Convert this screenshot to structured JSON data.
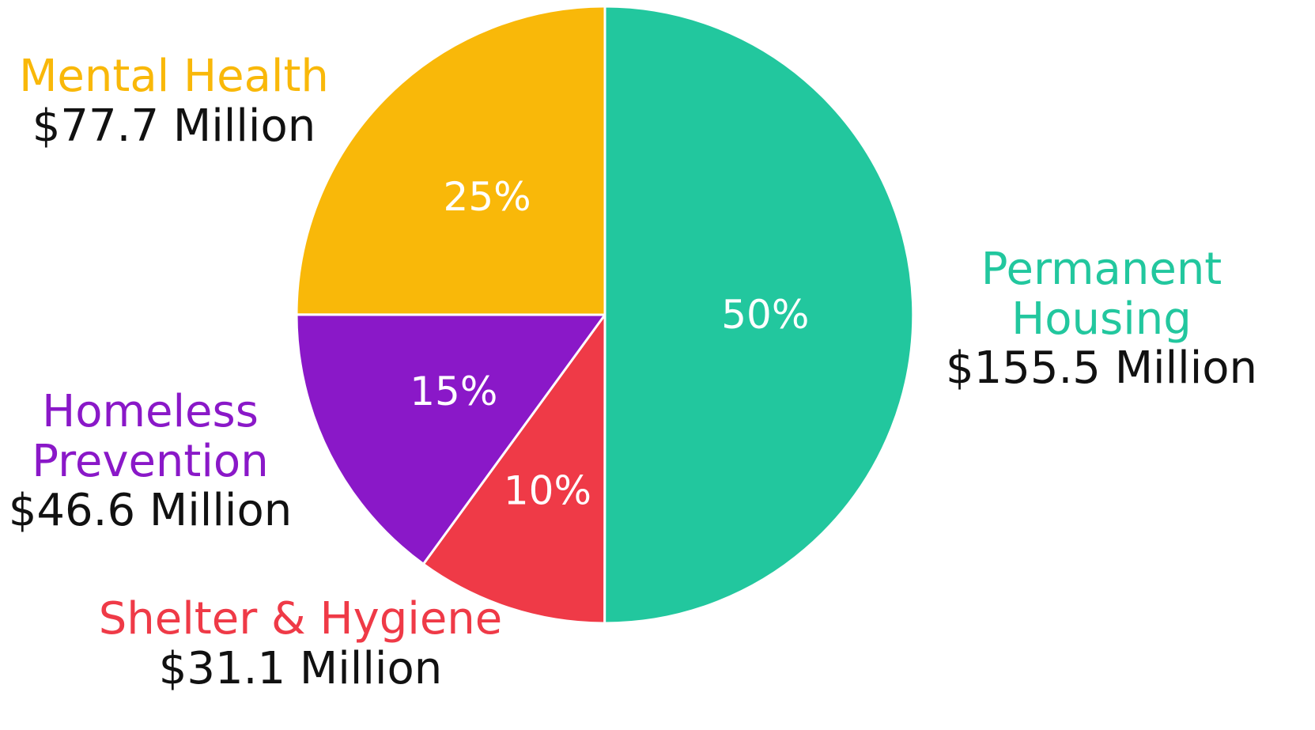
{
  "chart_data": {
    "type": "pie",
    "slices": [
      {
        "category": "Permanent Housing",
        "name_lines": [
          "Permanent",
          "Housing"
        ],
        "amount": "$155.5 Million",
        "value": 155.5,
        "percent_label": "50%",
        "color": "#22c79e"
      },
      {
        "category": "Shelter & Hygiene",
        "name_lines": [
          "Shelter & Hygiene"
        ],
        "amount": "$31.1 Million",
        "value": 31.1,
        "percent_label": "10%",
        "color": "#ef3a47"
      },
      {
        "category": "Homeless Prevention",
        "name_lines": [
          "Homeless",
          "Prevention"
        ],
        "amount": "$46.6 Million",
        "value": 46.6,
        "percent_label": "15%",
        "color": "#8a18c8"
      },
      {
        "category": "Mental Health",
        "name_lines": [
          "Mental Health"
        ],
        "amount": "$77.7 Million",
        "value": 77.7,
        "percent_label": "25%",
        "color": "#f9b809"
      }
    ],
    "start": "12 o'clock",
    "direction": "clockwise",
    "legend": "none",
    "labels": "outside",
    "slice_border_color": "#ffffff"
  }
}
